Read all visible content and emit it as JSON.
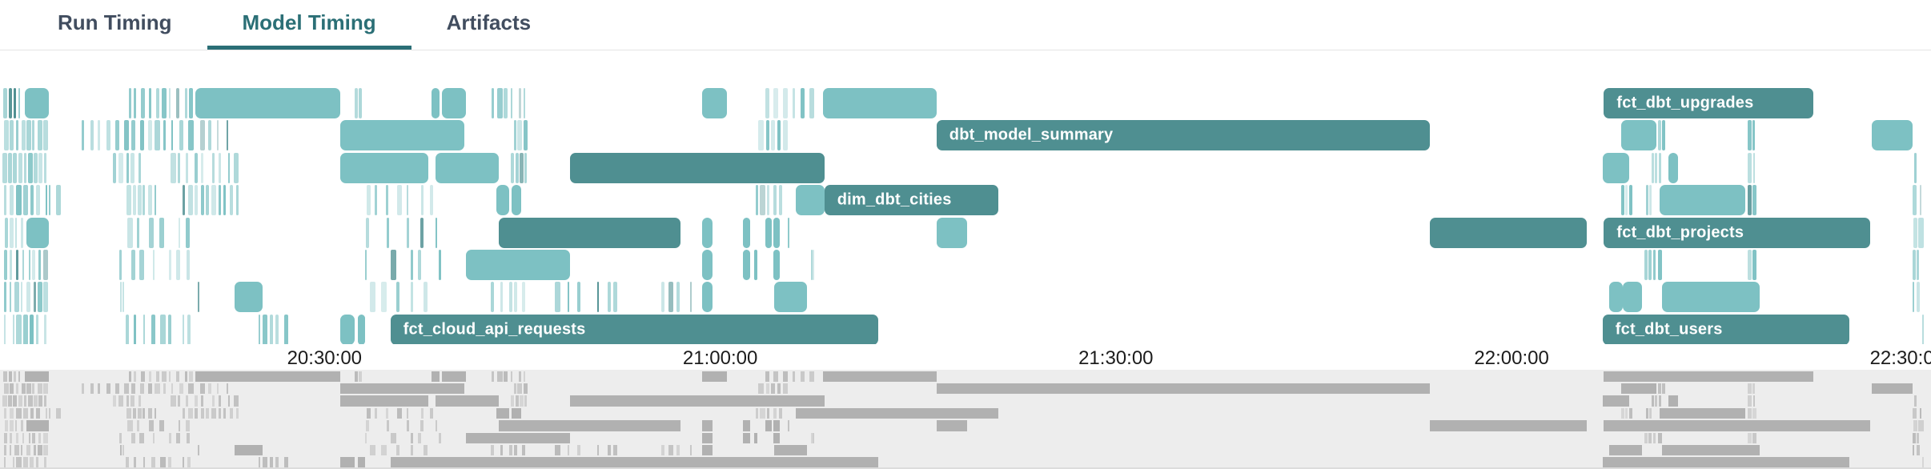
{
  "header": {
    "tabs": [
      {
        "label": "Run Timing",
        "active": false
      },
      {
        "label": "Model Timing",
        "active": true
      },
      {
        "label": "Artifacts",
        "active": false
      }
    ]
  },
  "colors": {
    "bar_dark": "#4f8f91",
    "bar_light": "#7dc1c3",
    "label_text": "#ffffff",
    "tab_active": "#2b6f76",
    "tab_inactive": "#414d5f",
    "tab_underline": "#2b6f76",
    "axis_text": "#1c1c1c",
    "header_border": "#e4e4e4",
    "minimap_bg": "#ededed",
    "minimap_bar": "#b1b1b1",
    "background": "#ffffff"
  },
  "chart_data": {
    "type": "gantt",
    "description": "Model Timing gantt of dbt model runs; times in minutes after 20:00",
    "rows": 8,
    "x_axis": {
      "unit": "minutes_after_20:00",
      "start_min": 5.4,
      "end_min": 151.8,
      "ticks": [
        {
          "min": 30,
          "label": "20:30:00"
        },
        {
          "min": 60,
          "label": "21:00:00"
        },
        {
          "min": 90,
          "label": "21:30:00"
        },
        {
          "min": 120,
          "label": "22:00:00"
        },
        {
          "min": 150,
          "label": "22:30:00"
        }
      ]
    },
    "bars": [
      {
        "r": 0,
        "s": 7.3,
        "e": 9.1,
        "t": "L"
      },
      {
        "r": 0,
        "s": 20.2,
        "e": 31.2,
        "t": "L"
      },
      {
        "r": 0,
        "s": 38.1,
        "e": 38.7,
        "t": "L"
      },
      {
        "r": 0,
        "s": 38.9,
        "e": 40.7,
        "t": "L"
      },
      {
        "r": 0,
        "s": 58.6,
        "e": 60.5,
        "t": "L"
      },
      {
        "r": 0,
        "s": 67.8,
        "e": 76.4,
        "t": "L"
      },
      {
        "r": 0,
        "s": 127.0,
        "e": 142.9,
        "t": "D",
        "label": "fct_dbt_upgrades"
      },
      {
        "r": 1,
        "s": 31.2,
        "e": 40.6,
        "t": "L"
      },
      {
        "r": 1,
        "s": 76.4,
        "e": 113.8,
        "t": "D",
        "label": "dbt_model_summary"
      },
      {
        "r": 1,
        "s": 128.3,
        "e": 131.0,
        "t": "L"
      },
      {
        "r": 1,
        "s": 147.3,
        "e": 150.4,
        "t": "L"
      },
      {
        "r": 2,
        "s": 31.2,
        "e": 37.9,
        "t": "L"
      },
      {
        "r": 2,
        "s": 38.4,
        "e": 43.2,
        "t": "L"
      },
      {
        "r": 2,
        "s": 48.6,
        "e": 67.9,
        "t": "D"
      },
      {
        "r": 2,
        "s": 126.9,
        "e": 128.9,
        "t": "L"
      },
      {
        "r": 2,
        "s": 131.9,
        "e": 132.6,
        "t": "L"
      },
      {
        "r": 3,
        "s": 43.0,
        "e": 44.0,
        "t": "L"
      },
      {
        "r": 3,
        "s": 44.2,
        "e": 44.9,
        "t": "L"
      },
      {
        "r": 3,
        "s": 65.7,
        "e": 67.9,
        "t": "L"
      },
      {
        "r": 3,
        "s": 67.9,
        "e": 81.1,
        "t": "D",
        "label": "dim_dbt_cities"
      },
      {
        "r": 3,
        "s": 131.2,
        "e": 137.7,
        "t": "L"
      },
      {
        "r": 4,
        "s": 7.4,
        "e": 9.1,
        "t": "L"
      },
      {
        "r": 4,
        "s": 43.2,
        "e": 57.0,
        "t": "D"
      },
      {
        "r": 4,
        "s": 58.6,
        "e": 59.4,
        "t": "L"
      },
      {
        "r": 4,
        "s": 61.7,
        "e": 62.3,
        "t": "L"
      },
      {
        "r": 4,
        "s": 63.4,
        "e": 63.9,
        "t": "L"
      },
      {
        "r": 4,
        "s": 64.0,
        "e": 64.5,
        "t": "L"
      },
      {
        "r": 4,
        "s": 76.4,
        "e": 78.7,
        "t": "L"
      },
      {
        "r": 4,
        "s": 113.8,
        "e": 125.7,
        "t": "D"
      },
      {
        "r": 4,
        "s": 127.0,
        "e": 147.2,
        "t": "D",
        "label": "fct_dbt_projects"
      },
      {
        "r": 5,
        "s": 40.7,
        "e": 48.6,
        "t": "L"
      },
      {
        "r": 5,
        "s": 58.6,
        "e": 59.4,
        "t": "L"
      },
      {
        "r": 5,
        "s": 61.7,
        "e": 62.3,
        "t": "L"
      },
      {
        "r": 5,
        "s": 62.6,
        "e": 62.8,
        "t": "L"
      },
      {
        "r": 5,
        "s": 64.0,
        "e": 64.5,
        "t": "L"
      },
      {
        "r": 6,
        "s": 23.2,
        "e": 25.3,
        "t": "L"
      },
      {
        "r": 6,
        "s": 58.6,
        "e": 59.4,
        "t": "L"
      },
      {
        "r": 6,
        "s": 64.1,
        "e": 66.6,
        "t": "L"
      },
      {
        "r": 6,
        "s": 127.4,
        "e": 128.4,
        "t": "L"
      },
      {
        "r": 6,
        "s": 128.4,
        "e": 129.9,
        "t": "L"
      },
      {
        "r": 6,
        "s": 131.4,
        "e": 138.8,
        "t": "L"
      },
      {
        "r": 7,
        "s": 31.2,
        "e": 32.3,
        "t": "L"
      },
      {
        "r": 7,
        "s": 32.5,
        "e": 33.1,
        "t": "L"
      },
      {
        "r": 7,
        "s": 35.0,
        "e": 72.0,
        "t": "D",
        "label": "fct_cloud_api_requests"
      },
      {
        "r": 7,
        "s": 126.9,
        "e": 145.6,
        "t": "D",
        "label": "fct_dbt_users"
      }
    ],
    "stripe_clusters": [
      {
        "r": 0,
        "s": 5.6,
        "e": 7.2,
        "n": 4
      },
      {
        "r": 0,
        "s": 15.0,
        "e": 20.2,
        "n": 10
      },
      {
        "r": 0,
        "s": 32.3,
        "e": 32.9,
        "n": 2
      },
      {
        "r": 0,
        "s": 42.6,
        "e": 45.5,
        "n": 6
      },
      {
        "r": 0,
        "s": 63.2,
        "e": 67.4,
        "n": 6
      },
      {
        "r": 1,
        "s": 5.7,
        "e": 9.1,
        "n": 8
      },
      {
        "r": 1,
        "s": 11.5,
        "e": 20.2,
        "n": 14
      },
      {
        "r": 1,
        "s": 20.5,
        "e": 22.8,
        "n": 4
      },
      {
        "r": 1,
        "s": 44.2,
        "e": 45.5,
        "n": 3
      },
      {
        "r": 1,
        "s": 62.9,
        "e": 65.2,
        "n": 5
      },
      {
        "r": 1,
        "s": 131.1,
        "e": 131.7,
        "n": 2
      },
      {
        "r": 1,
        "s": 137.9,
        "e": 138.6,
        "n": 2
      },
      {
        "r": 2,
        "s": 5.6,
        "e": 9.1,
        "n": 9
      },
      {
        "r": 2,
        "s": 13.9,
        "e": 16.2,
        "n": 5
      },
      {
        "r": 2,
        "s": 18.2,
        "e": 23.6,
        "n": 9
      },
      {
        "r": 2,
        "s": 44.1,
        "e": 45.5,
        "n": 4
      },
      {
        "r": 2,
        "s": 130.6,
        "e": 131.4,
        "n": 3
      },
      {
        "r": 2,
        "s": 137.9,
        "e": 138.6,
        "n": 2
      },
      {
        "r": 2,
        "s": 150.5,
        "e": 150.9,
        "n": 1
      },
      {
        "r": 3,
        "s": 5.6,
        "e": 10.1,
        "n": 9
      },
      {
        "r": 3,
        "s": 15.0,
        "e": 17.4,
        "n": 6
      },
      {
        "r": 3,
        "s": 19.2,
        "e": 23.6,
        "n": 10
      },
      {
        "r": 3,
        "s": 33.0,
        "e": 38.5,
        "n": 7
      },
      {
        "r": 3,
        "s": 62.5,
        "e": 64.9,
        "n": 5
      },
      {
        "r": 3,
        "s": 128.3,
        "e": 129.2,
        "n": 3
      },
      {
        "r": 3,
        "s": 130.2,
        "e": 130.7,
        "n": 2
      },
      {
        "r": 3,
        "s": 137.9,
        "e": 138.6,
        "n": 2
      },
      {
        "r": 3,
        "s": 150.4,
        "e": 151.2,
        "n": 2
      },
      {
        "r": 4,
        "s": 5.7,
        "e": 7.3,
        "n": 4
      },
      {
        "r": 4,
        "s": 14.7,
        "e": 20.2,
        "n": 6
      },
      {
        "r": 4,
        "s": 33.0,
        "e": 39.4,
        "n": 5
      },
      {
        "r": 4,
        "s": 64.9,
        "e": 65.5,
        "n": 1
      },
      {
        "r": 4,
        "s": 150.4,
        "e": 151.3,
        "n": 2
      },
      {
        "r": 5,
        "s": 5.6,
        "e": 9.1,
        "n": 8
      },
      {
        "r": 5,
        "s": 14.4,
        "e": 14.8,
        "n": 1
      },
      {
        "r": 5,
        "s": 15.0,
        "e": 20.2,
        "n": 6
      },
      {
        "r": 5,
        "s": 33.0,
        "e": 39.4,
        "n": 5
      },
      {
        "r": 5,
        "s": 66.9,
        "e": 67.1,
        "n": 2
      },
      {
        "r": 5,
        "s": 130.0,
        "e": 131.5,
        "n": 4
      },
      {
        "r": 5,
        "s": 137.9,
        "e": 138.6,
        "n": 2
      },
      {
        "r": 5,
        "s": 150.4,
        "e": 151.0,
        "n": 2
      },
      {
        "r": 6,
        "s": 5.6,
        "e": 9.1,
        "n": 8
      },
      {
        "r": 6,
        "s": 14.5,
        "e": 14.9,
        "n": 2
      },
      {
        "r": 6,
        "s": 20.4,
        "e": 20.5,
        "n": 1
      },
      {
        "r": 6,
        "s": 33.0,
        "e": 38.5,
        "n": 5
      },
      {
        "r": 6,
        "s": 42.6,
        "e": 45.5,
        "n": 5
      },
      {
        "r": 6,
        "s": 47.3,
        "e": 52.7,
        "n": 6
      },
      {
        "r": 6,
        "s": 55.2,
        "e": 58.2,
        "n": 4
      },
      {
        "r": 6,
        "s": 150.4,
        "e": 151.0,
        "n": 2
      },
      {
        "r": 7,
        "s": 5.6,
        "e": 9.1,
        "n": 7
      },
      {
        "r": 7,
        "s": 14.7,
        "e": 20.2,
        "n": 8
      },
      {
        "r": 7,
        "s": 24.7,
        "e": 27.3,
        "n": 5
      },
      {
        "r": 7,
        "s": 151.1,
        "e": 151.3,
        "n": 1
      }
    ],
    "legend": "none",
    "grid": false
  }
}
